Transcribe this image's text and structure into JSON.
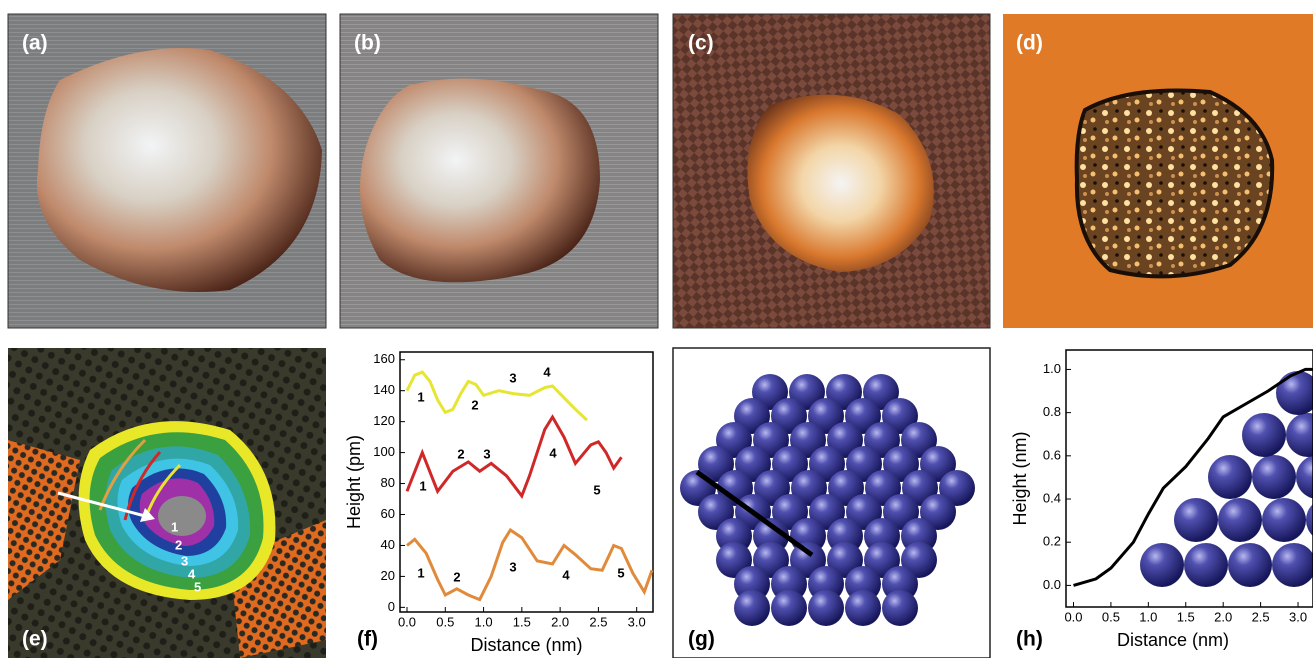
{
  "panel_labels": [
    "(a)",
    "(b)",
    "(c)",
    "(d)",
    "(e)",
    "(f)",
    "(g)",
    "(h)"
  ],
  "panel_e_annotations": [
    "1",
    "2",
    "3",
    "4",
    "5"
  ],
  "chart_data": [
    {
      "type": "line",
      "x_label": "Distance (nm)",
      "y_label": "Height (pm)",
      "xlim": [
        0,
        3.2
      ],
      "ylim": [
        -3,
        165
      ],
      "xticks": [
        {
          "value": 0,
          "label": "0.0"
        },
        {
          "value": 0.5,
          "label": "0.5"
        },
        {
          "value": 1,
          "label": "1.0"
        },
        {
          "value": 1.5,
          "label": "1.5"
        },
        {
          "value": 2,
          "label": "2.0"
        },
        {
          "value": 2.5,
          "label": "2.5"
        },
        {
          "value": 3,
          "label": "3.0"
        }
      ],
      "yticks": [
        0,
        20,
        40,
        60,
        80,
        100,
        120,
        140,
        160
      ],
      "series": [
        {
          "color": "#e6e632",
          "annotations": [
            "1",
            "2",
            "3",
            "4"
          ],
          "x": [
            0,
            0.1,
            0.2,
            0.3,
            0.4,
            0.5,
            0.6,
            0.7,
            0.8,
            0.9,
            1.0,
            1.2,
            1.4,
            1.6,
            1.8,
            1.9,
            2.0,
            2.2,
            2.35
          ],
          "values": [
            140,
            150,
            152,
            146,
            134,
            126,
            128,
            138,
            146,
            144,
            137,
            140,
            138,
            137,
            142,
            143,
            138,
            128,
            121
          ]
        },
        {
          "color": "#d02828",
          "annotations": [
            "1",
            "2",
            "3",
            "4",
            "5"
          ],
          "x": [
            0,
            0.2,
            0.4,
            0.6,
            0.8,
            0.95,
            1.1,
            1.3,
            1.5,
            1.6,
            1.8,
            1.9,
            2.05,
            2.2,
            2.4,
            2.5,
            2.6,
            2.7,
            2.8
          ],
          "values": [
            75,
            100,
            75,
            88,
            94,
            88,
            93,
            85,
            72,
            85,
            115,
            123,
            110,
            93,
            105,
            107,
            100,
            90,
            97
          ]
        },
        {
          "color": "#e08a3a",
          "annotations": [
            "1",
            "2",
            "3",
            "4",
            "5"
          ],
          "x": [
            0,
            0.1,
            0.25,
            0.4,
            0.5,
            0.65,
            0.8,
            0.95,
            1.1,
            1.25,
            1.35,
            1.5,
            1.7,
            1.9,
            2.05,
            2.2,
            2.4,
            2.55,
            2.7,
            2.8,
            2.95,
            3.1,
            3.2
          ],
          "values": [
            40,
            44,
            35,
            18,
            8,
            12,
            8,
            5,
            20,
            42,
            50,
            45,
            30,
            28,
            40,
            34,
            25,
            24,
            40,
            38,
            22,
            10,
            24
          ]
        }
      ]
    },
    {
      "type": "line",
      "x_label": "Distance (nm)",
      "y_label": "Height (nm)",
      "xlim": [
        -0.1,
        3.2
      ],
      "ylim": [
        -0.1,
        1.09
      ],
      "xticks": [
        {
          "value": 0,
          "label": "0.0"
        },
        {
          "value": 0.5,
          "label": "0.5"
        },
        {
          "value": 1,
          "label": "1.0"
        },
        {
          "value": 1.5,
          "label": "1.5"
        },
        {
          "value": 2,
          "label": "2.0"
        },
        {
          "value": 2.5,
          "label": "2.5"
        },
        {
          "value": 3,
          "label": "3.0"
        }
      ],
      "yticks": [
        {
          "value": 0,
          "label": "0.0"
        },
        {
          "value": 0.2,
          "label": "0.2"
        },
        {
          "value": 0.4,
          "label": "0.4"
        },
        {
          "value": 0.6,
          "label": "0.6"
        },
        {
          "value": 0.8,
          "label": "0.8"
        },
        {
          "value": 1,
          "label": "1.0"
        }
      ],
      "series": [
        {
          "color": "#000000",
          "x": [
            0,
            0.3,
            0.5,
            0.8,
            1.0,
            1.2,
            1.5,
            1.8,
            2.0,
            2.3,
            2.6,
            2.9,
            3.1,
            3.2
          ],
          "values": [
            0,
            0.03,
            0.08,
            0.2,
            0.33,
            0.45,
            0.55,
            0.68,
            0.78,
            0.84,
            0.9,
            0.97,
            1.0,
            1.0
          ]
        }
      ]
    }
  ]
}
